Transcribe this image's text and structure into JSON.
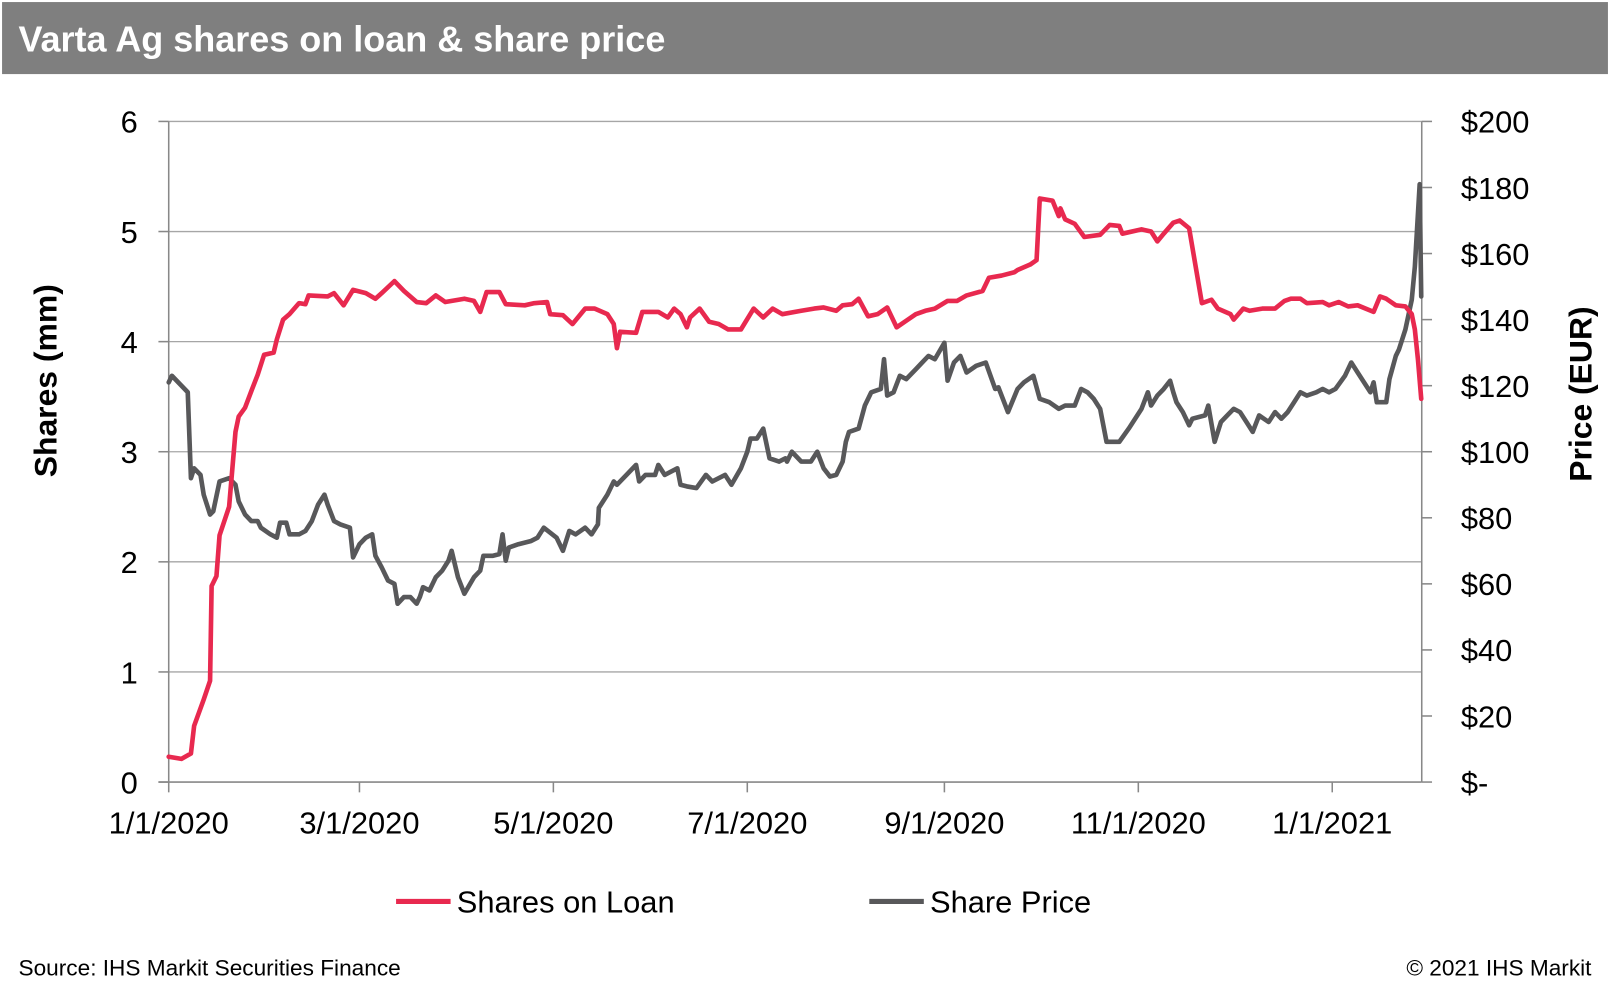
{
  "title": "Varta Ag shares on loan & share price",
  "footer": {
    "source": "Source: IHS Markit Securities Finance",
    "copyright": "© 2021 IHS Markit"
  },
  "colors": {
    "header_bg": "#7f7f7f",
    "shares_on_loan": "#e8294f",
    "share_price": "#58585a",
    "grid": "#a6a6a6"
  },
  "chart_data": {
    "type": "line",
    "title": "Varta Ag shares on loan & share price",
    "x_unit": "days since 1/1/2020",
    "xlim": [
      0,
      394
    ],
    "x_ticks": [
      {
        "day": 0,
        "label": "1/1/2020"
      },
      {
        "day": 60,
        "label": "3/1/2020"
      },
      {
        "day": 121,
        "label": "5/1/2020"
      },
      {
        "day": 182,
        "label": "7/1/2020"
      },
      {
        "day": 244,
        "label": "9/1/2020"
      },
      {
        "day": 305,
        "label": "11/1/2020"
      },
      {
        "day": 366,
        "label": "1/1/2021"
      }
    ],
    "y_left": {
      "label": "Shares (mm)",
      "lim": [
        0,
        6
      ],
      "ticks": [
        "0",
        "1",
        "2",
        "3",
        "4",
        "5",
        "6"
      ]
    },
    "y_right": {
      "label": "Price (EUR)",
      "lim": [
        0,
        200
      ],
      "ticks": [
        "$-",
        "$20",
        "$40",
        "$60",
        "$80",
        "$100",
        "$120",
        "$140",
        "$160",
        "$180",
        "$200"
      ]
    },
    "grid": true,
    "legend": {
      "placement": "bottom",
      "entries": [
        "Shares on Loan",
        "Share Price"
      ]
    },
    "series": [
      {
        "name": "Shares on Loan",
        "axis": "left",
        "x": [
          0,
          4,
          7,
          8,
          11,
          13,
          13.5,
          15,
          16,
          19,
          21,
          22,
          24,
          26,
          28,
          30,
          33,
          34,
          36,
          38,
          41,
          43,
          44,
          50,
          52,
          55,
          58,
          62,
          65,
          67,
          71,
          74,
          78,
          81,
          84,
          87,
          93,
          96,
          98,
          100,
          104,
          106,
          112,
          115,
          119,
          120,
          124,
          127,
          131,
          134,
          138,
          140,
          141,
          142,
          147,
          149,
          154,
          157,
          159,
          161,
          163,
          164,
          167,
          170,
          173,
          176,
          180,
          184,
          187,
          190,
          193,
          199,
          203,
          206,
          210,
          212,
          215,
          217,
          220,
          223,
          226,
          229,
          232,
          235,
          238,
          241,
          245,
          248,
          251,
          256,
          258,
          262,
          266,
          267,
          271,
          273,
          274,
          278,
          280,
          280.5,
          282,
          285,
          288,
          293,
          296,
          299,
          300,
          306,
          309,
          311,
          313,
          316,
          318,
          321,
          325,
          328,
          330,
          334,
          335,
          338,
          340,
          344,
          348,
          351,
          353,
          356,
          358,
          363,
          365,
          368,
          371,
          374,
          379,
          381,
          383,
          386,
          389,
          391,
          392,
          393,
          394
        ],
        "y": [
          0.23,
          0.21,
          0.26,
          0.51,
          0.75,
          0.92,
          1.78,
          1.87,
          2.24,
          2.5,
          3.18,
          3.32,
          3.4,
          3.55,
          3.7,
          3.88,
          3.9,
          4.02,
          4.2,
          4.25,
          4.35,
          4.34,
          4.42,
          4.41,
          4.44,
          4.33,
          4.47,
          4.44,
          4.39,
          4.44,
          4.55,
          4.46,
          4.36,
          4.35,
          4.42,
          4.36,
          4.39,
          4.37,
          4.27,
          4.45,
          4.45,
          4.34,
          4.33,
          4.35,
          4.36,
          4.25,
          4.24,
          4.16,
          4.3,
          4.3,
          4.25,
          4.16,
          3.94,
          4.09,
          4.08,
          4.27,
          4.27,
          4.22,
          4.3,
          4.25,
          4.13,
          4.22,
          4.3,
          4.18,
          4.16,
          4.11,
          4.11,
          4.3,
          4.22,
          4.3,
          4.25,
          4.28,
          4.3,
          4.31,
          4.28,
          4.33,
          4.34,
          4.39,
          4.23,
          4.25,
          4.31,
          4.13,
          4.19,
          4.25,
          4.28,
          4.3,
          4.37,
          4.37,
          4.42,
          4.46,
          4.58,
          4.6,
          4.63,
          4.65,
          4.7,
          4.74,
          5.3,
          5.28,
          5.14,
          5.21,
          5.11,
          5.07,
          4.95,
          4.97,
          5.06,
          5.05,
          4.98,
          5.02,
          5.0,
          4.91,
          4.98,
          5.08,
          5.1,
          5.03,
          4.35,
          4.38,
          4.3,
          4.25,
          4.2,
          4.3,
          4.28,
          4.3,
          4.3,
          4.37,
          4.39,
          4.39,
          4.35,
          4.36,
          4.33,
          4.36,
          4.32,
          4.33,
          4.27,
          4.41,
          4.39,
          4.33,
          4.32,
          4.25,
          4.11,
          3.83,
          3.48
        ]
      },
      {
        "name": "Share Price",
        "axis": "right",
        "x": [
          0,
          1,
          3,
          5,
          6,
          7,
          8,
          10,
          11,
          13,
          14,
          16,
          19,
          21,
          22,
          24,
          26,
          28,
          29,
          32,
          34,
          35,
          37,
          38,
          41,
          43,
          45,
          47,
          49,
          50,
          52,
          54,
          57,
          58,
          60,
          62,
          64,
          65,
          67,
          69,
          71,
          72,
          74,
          76,
          78,
          79,
          80,
          82,
          84,
          86,
          88,
          89,
          91,
          93,
          96,
          98,
          99,
          102,
          104,
          105,
          106,
          107,
          110,
          114,
          116,
          118,
          122,
          124,
          126,
          128,
          131,
          133,
          135,
          135.3,
          138,
          140,
          141,
          144,
          147,
          148,
          150,
          153,
          154,
          156,
          160,
          161,
          163,
          166,
          169,
          171,
          173,
          175,
          177,
          180,
          182,
          183,
          185,
          187,
          189,
          192,
          194,
          194.5,
          196,
          199,
          202,
          204,
          206,
          208,
          210,
          212,
          213,
          214,
          217,
          219,
          221,
          224,
          225,
          226,
          228,
          230,
          232,
          235,
          237,
          239,
          241,
          244,
          245,
          247,
          249,
          251,
          254,
          257,
          260,
          261,
          264,
          267,
          269,
          272,
          274,
          277,
          280,
          282,
          285,
          287,
          289,
          291,
          293,
          295,
          299,
          302,
          304,
          306,
          308,
          309,
          311,
          313,
          315,
          316,
          317,
          319,
          321,
          322,
          326,
          327,
          329,
          331,
          333,
          335,
          337,
          339,
          341,
          343,
          346,
          348,
          350,
          352,
          354,
          356,
          358,
          361,
          363,
          365,
          367,
          370,
          372,
          374,
          376,
          378,
          379,
          380,
          383,
          384,
          386,
          387,
          389,
          391,
          392,
          393.5,
          394
        ],
        "y": [
          121,
          123,
          121,
          119,
          118,
          92,
          95,
          93,
          87,
          81,
          82,
          91,
          92,
          90,
          85,
          81,
          79,
          79,
          77,
          75,
          74,
          78.5,
          78.5,
          75,
          75,
          76,
          79,
          84,
          87,
          84,
          79,
          78,
          77,
          68,
          72,
          74,
          75,
          68.5,
          65,
          61,
          60,
          54,
          56,
          56,
          54,
          56,
          59,
          58,
          62,
          64,
          67,
          70,
          62,
          57,
          62,
          64,
          68.5,
          68.5,
          69,
          75,
          67,
          71,
          72,
          73,
          74,
          77,
          74,
          70,
          76,
          75,
          77,
          75,
          78,
          83,
          87,
          91,
          90,
          93,
          96,
          91,
          93,
          93,
          96,
          93,
          95,
          90,
          89.5,
          89,
          93,
          91,
          92,
          93,
          90,
          95,
          100,
          104,
          104,
          107,
          98,
          97,
          98,
          97,
          100,
          97,
          97,
          100,
          95,
          92.5,
          93,
          97,
          103,
          106,
          107,
          114,
          118,
          119,
          128,
          117,
          118,
          123,
          122,
          125,
          127,
          129,
          128,
          133,
          121.5,
          127,
          129,
          124,
          126,
          127,
          119,
          119.5,
          112,
          119,
          121,
          123,
          116,
          115,
          113,
          114,
          114,
          119,
          118,
          116,
          113,
          103,
          103,
          107,
          110,
          113,
          118,
          114,
          117,
          119,
          121.5,
          118,
          115,
          112,
          108,
          110,
          111,
          114,
          103,
          109,
          111,
          113,
          112,
          109,
          106,
          111,
          109,
          112,
          110,
          112,
          115,
          118,
          117,
          118,
          119,
          118,
          119,
          123,
          127,
          124,
          121,
          118,
          121,
          115,
          115,
          122,
          129,
          131,
          137,
          146,
          156,
          181,
          147
        ]
      }
    ]
  }
}
